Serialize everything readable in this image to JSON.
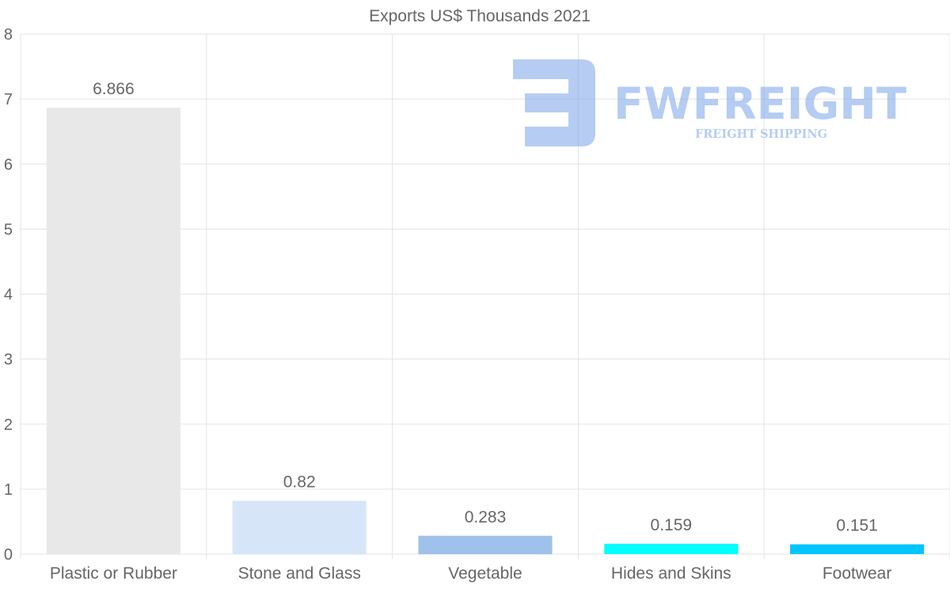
{
  "chart_data": {
    "type": "bar",
    "title": "Exports US$ Thousands 2021",
    "categories": [
      "Plastic or Rubber",
      "Stone and Glass",
      "Vegetable",
      "Hides and Skins",
      "Footwear"
    ],
    "values": [
      6.866,
      0.82,
      0.283,
      0.159,
      0.151
    ],
    "value_labels": [
      "6.866",
      "0.82",
      "0.283",
      "0.159",
      "0.151"
    ],
    "colors": [
      "#e8e8e8",
      "#d6e6f8",
      "#9ec2ea",
      "#00ffff",
      "#00c5ff"
    ],
    "xlabel": "",
    "ylabel": "",
    "ylim": [
      0,
      8
    ],
    "yticks": [
      0,
      1,
      2,
      3,
      4,
      5,
      6,
      7,
      8
    ],
    "grid": true,
    "legend": "none"
  },
  "watermark": {
    "brand": "FWFREIGHT",
    "tagline": "FREIGHT SHIPPING",
    "color": "#7aa3ea"
  }
}
